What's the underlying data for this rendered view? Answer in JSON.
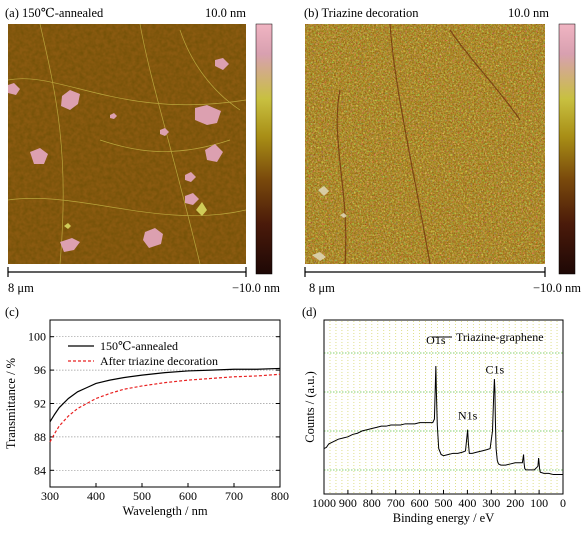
{
  "colors": {
    "afm_low": "#2a0c08",
    "afm_mid": "#9a6a12",
    "afm_high": "#e7a8b8",
    "afm_flake": "#dca0b0",
    "grid_gray": "#9a9a9a",
    "grid_green": "#5ec040",
    "grid_yellow": "#d8d870",
    "series_annealed": "#000000",
    "series_triazine": "#e82020",
    "series_xps": "#000000"
  },
  "panels": {
    "a": {
      "title": "(a) 150℃-annealed",
      "scale_max": "10.0 nm",
      "scale_min": "−10.0 nm",
      "scalebar": "8 μm"
    },
    "b": {
      "title": "(b) Triazine decoration",
      "scale_max": "10.0 nm",
      "scale_min": "−10.0 nm",
      "scalebar": "8 μm"
    },
    "c": {
      "panel_label": "(c)"
    },
    "d": {
      "panel_label": "(d)"
    }
  },
  "chart_data": [
    {
      "type": "line",
      "panel": "c",
      "xlabel": "Wavelength / nm",
      "ylabel": "Transmittance / %",
      "xlim": [
        300,
        800
      ],
      "ylim": [
        82,
        102
      ],
      "xticks": [
        300,
        400,
        500,
        600,
        700,
        800
      ],
      "yticks": [
        84,
        88,
        92,
        96,
        100
      ],
      "grid": "horizontal dotted",
      "legend_position": "top-left",
      "x": [
        300,
        310,
        320,
        340,
        360,
        380,
        400,
        430,
        460,
        500,
        550,
        600,
        650,
        700,
        750,
        800
      ],
      "series": [
        {
          "name": "150℃-annealed",
          "style": "solid",
          "values": [
            89.8,
            90.7,
            91.5,
            92.6,
            93.4,
            93.9,
            94.4,
            94.8,
            95.1,
            95.4,
            95.7,
            95.9,
            96.0,
            96.1,
            96.1,
            96.2
          ]
        },
        {
          "name": "After triazine decoration",
          "style": "dashed",
          "values": [
            87.4,
            88.4,
            89.3,
            90.5,
            91.4,
            92.0,
            92.6,
            93.2,
            93.7,
            94.1,
            94.5,
            94.8,
            95.0,
            95.2,
            95.3,
            95.5
          ]
        }
      ]
    },
    {
      "type": "line",
      "panel": "d",
      "xlabel": "Binding energy / eV",
      "ylabel": "Counts / (a.u.)",
      "xlim": [
        1000,
        0
      ],
      "xticks": [
        1000,
        900,
        800,
        700,
        600,
        500,
        400,
        300,
        200,
        100,
        0
      ],
      "legend_position": "top-right",
      "annotations": [
        {
          "text": "O1s",
          "x": 532
        },
        {
          "text": "N1s",
          "x": 399
        },
        {
          "text": "C1s",
          "x": 285
        }
      ],
      "series": [
        {
          "name": "Triazine-graphene",
          "x": [
            1000,
            990,
            980,
            960,
            940,
            920,
            900,
            880,
            860,
            840,
            820,
            800,
            780,
            760,
            740,
            720,
            700,
            680,
            660,
            640,
            620,
            600,
            580,
            560,
            545,
            538,
            534,
            532,
            530,
            526,
            520,
            510,
            500,
            480,
            460,
            440,
            420,
            408,
            402,
            399,
            396,
            392,
            380,
            360,
            340,
            320,
            305,
            295,
            290,
            287,
            285,
            283,
            280,
            275,
            270,
            260,
            240,
            220,
            200,
            185,
            170,
            165,
            163,
            160,
            155,
            140,
            120,
            105,
            102,
            100,
            98,
            95,
            80,
            60,
            40,
            20,
            0
          ],
          "values": [
            0.3,
            0.31,
            0.34,
            0.36,
            0.38,
            0.39,
            0.4,
            0.42,
            0.43,
            0.45,
            0.46,
            0.47,
            0.48,
            0.49,
            0.49,
            0.5,
            0.5,
            0.5,
            0.51,
            0.51,
            0.51,
            0.52,
            0.52,
            0.52,
            0.52,
            0.55,
            0.85,
            1.0,
            0.8,
            0.5,
            0.3,
            0.25,
            0.24,
            0.25,
            0.26,
            0.26,
            0.27,
            0.28,
            0.4,
            0.46,
            0.35,
            0.26,
            0.26,
            0.27,
            0.28,
            0.29,
            0.3,
            0.45,
            0.75,
            0.89,
            0.8,
            0.55,
            0.3,
            0.2,
            0.17,
            0.16,
            0.16,
            0.17,
            0.18,
            0.18,
            0.18,
            0.25,
            0.18,
            0.13,
            0.12,
            0.12,
            0.12,
            0.15,
            0.22,
            0.18,
            0.13,
            0.1,
            0.09,
            0.09,
            0.08,
            0.08,
            0.08
          ]
        }
      ]
    }
  ]
}
